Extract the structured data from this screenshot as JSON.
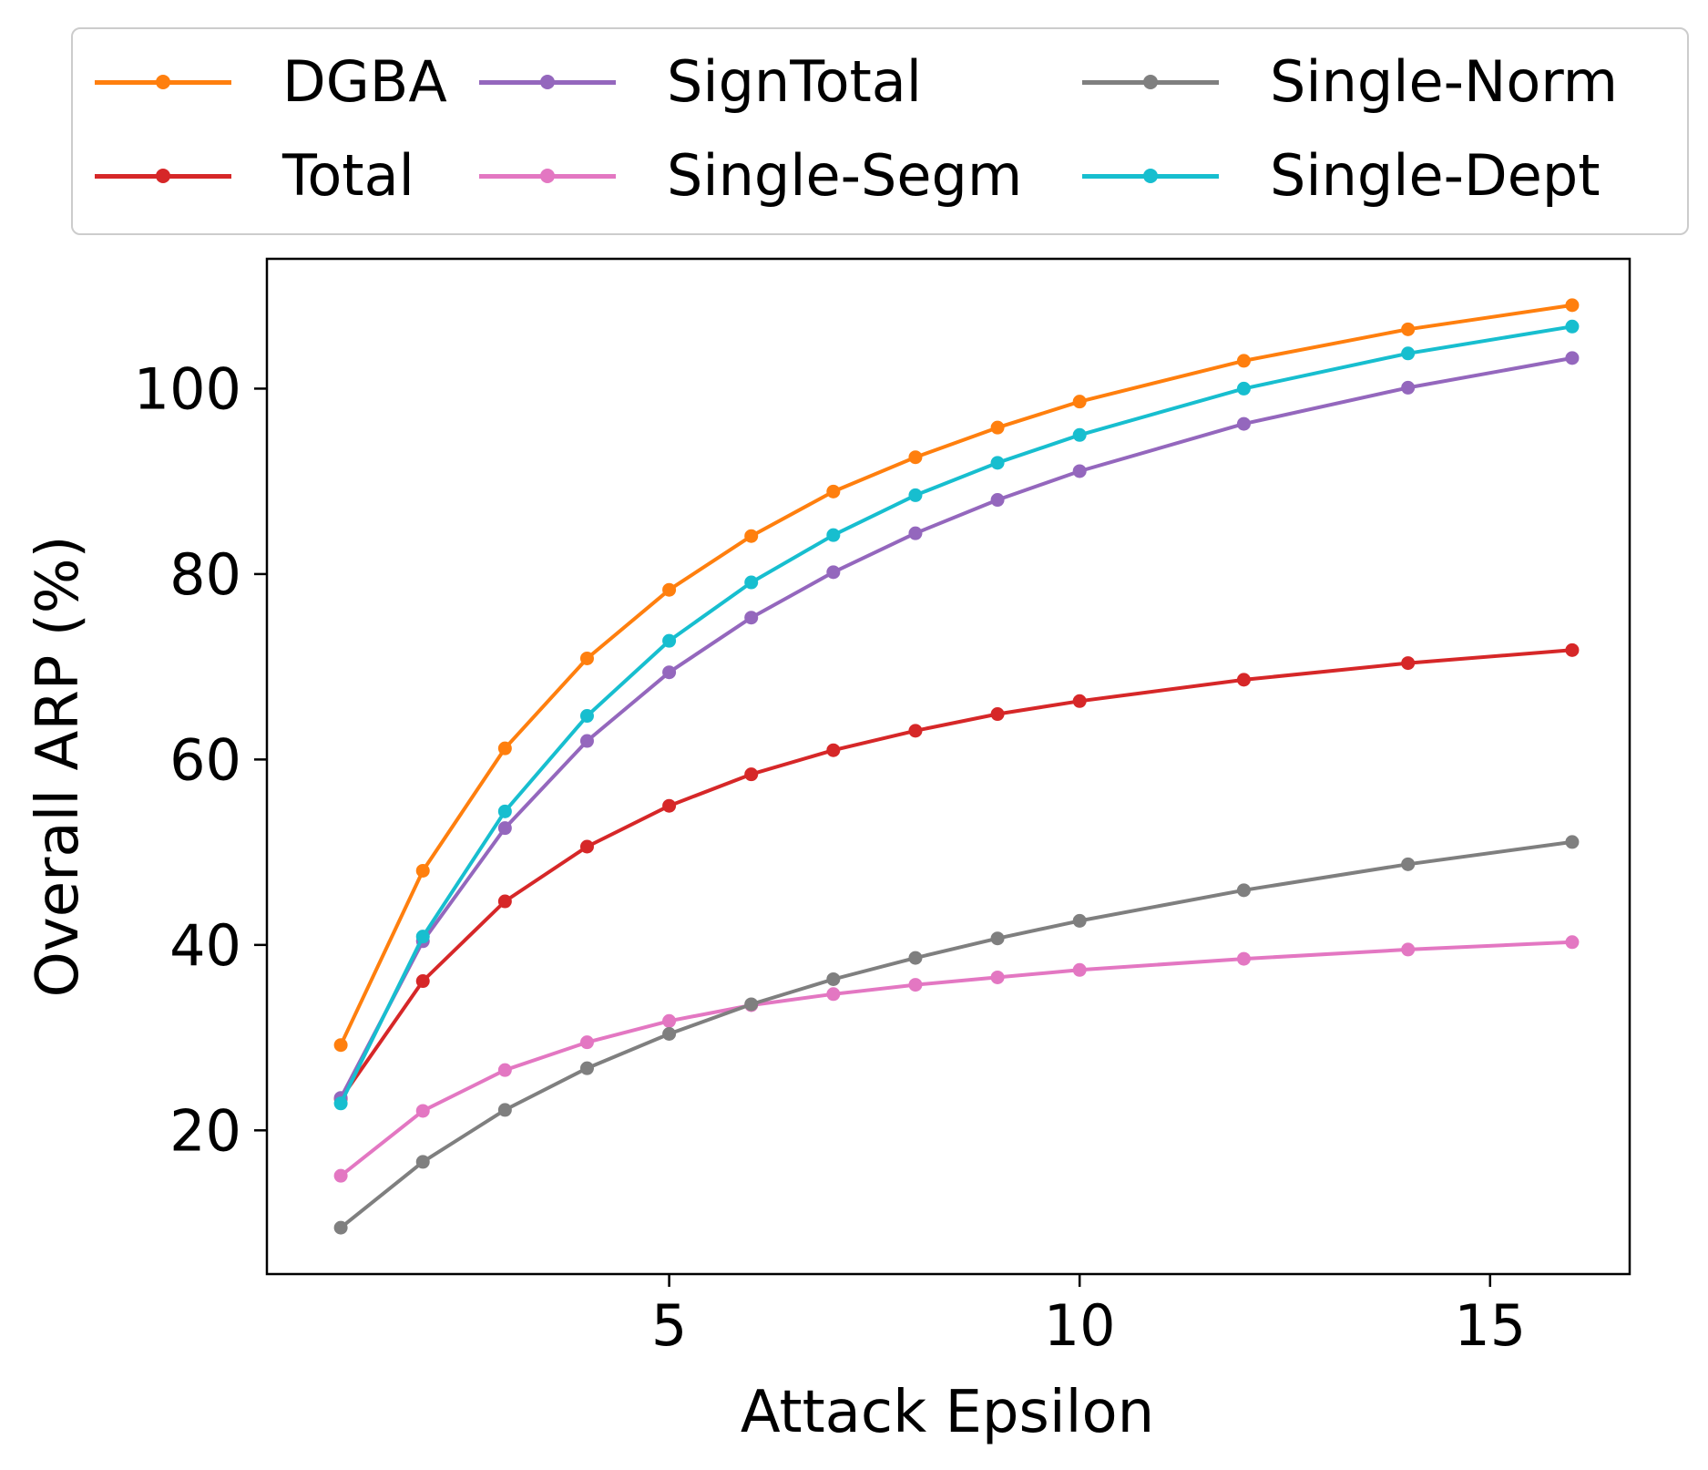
{
  "chart_data": {
    "type": "line",
    "title": "",
    "xlabel": "Attack Epsilon",
    "ylabel": "Overall ARP (%)",
    "xlim": [
      0.1,
      16.7
    ],
    "ylim": [
      4.5,
      114
    ],
    "x_ticks": [
      5,
      10,
      15
    ],
    "y_ticks": [
      20,
      40,
      60,
      80,
      100
    ],
    "grid": false,
    "legend_position": "top",
    "x": [
      1,
      2,
      3,
      4,
      5,
      6,
      7,
      8,
      9,
      10,
      12,
      14,
      16
    ],
    "series": [
      {
        "name": "DGBA",
        "color": "#ff7f0e",
        "values": [
          29.2,
          48.0,
          61.2,
          70.9,
          78.3,
          84.1,
          88.9,
          92.6,
          95.8,
          98.6,
          103.0,
          106.4,
          109.0
        ]
      },
      {
        "name": "Total",
        "color": "#d62728",
        "values": [
          23.4,
          36.1,
          44.7,
          50.6,
          55.0,
          58.4,
          61.0,
          63.1,
          64.9,
          66.3,
          68.6,
          70.4,
          71.8
        ]
      },
      {
        "name": "SignTotal",
        "color": "#9467bd",
        "values": [
          23.5,
          40.4,
          52.6,
          62.0,
          69.4,
          75.3,
          80.2,
          84.4,
          88.0,
          91.1,
          96.2,
          100.1,
          103.3
        ]
      },
      {
        "name": "Single-Segm",
        "color": "#e377c2",
        "values": [
          15.1,
          22.1,
          26.5,
          29.5,
          31.8,
          33.5,
          34.7,
          35.7,
          36.5,
          37.3,
          38.5,
          39.5,
          40.3
        ]
      },
      {
        "name": "Single-Norm",
        "color": "#7f7f7f",
        "values": [
          9.5,
          16.6,
          22.2,
          26.7,
          30.4,
          33.6,
          36.3,
          38.6,
          40.7,
          42.6,
          45.9,
          48.7,
          51.1
        ]
      },
      {
        "name": "Single-Dept",
        "color": "#17becf",
        "values": [
          22.9,
          40.9,
          54.4,
          64.7,
          72.8,
          79.1,
          84.2,
          88.5,
          92.0,
          95.0,
          100.0,
          103.8,
          106.7
        ]
      }
    ]
  }
}
